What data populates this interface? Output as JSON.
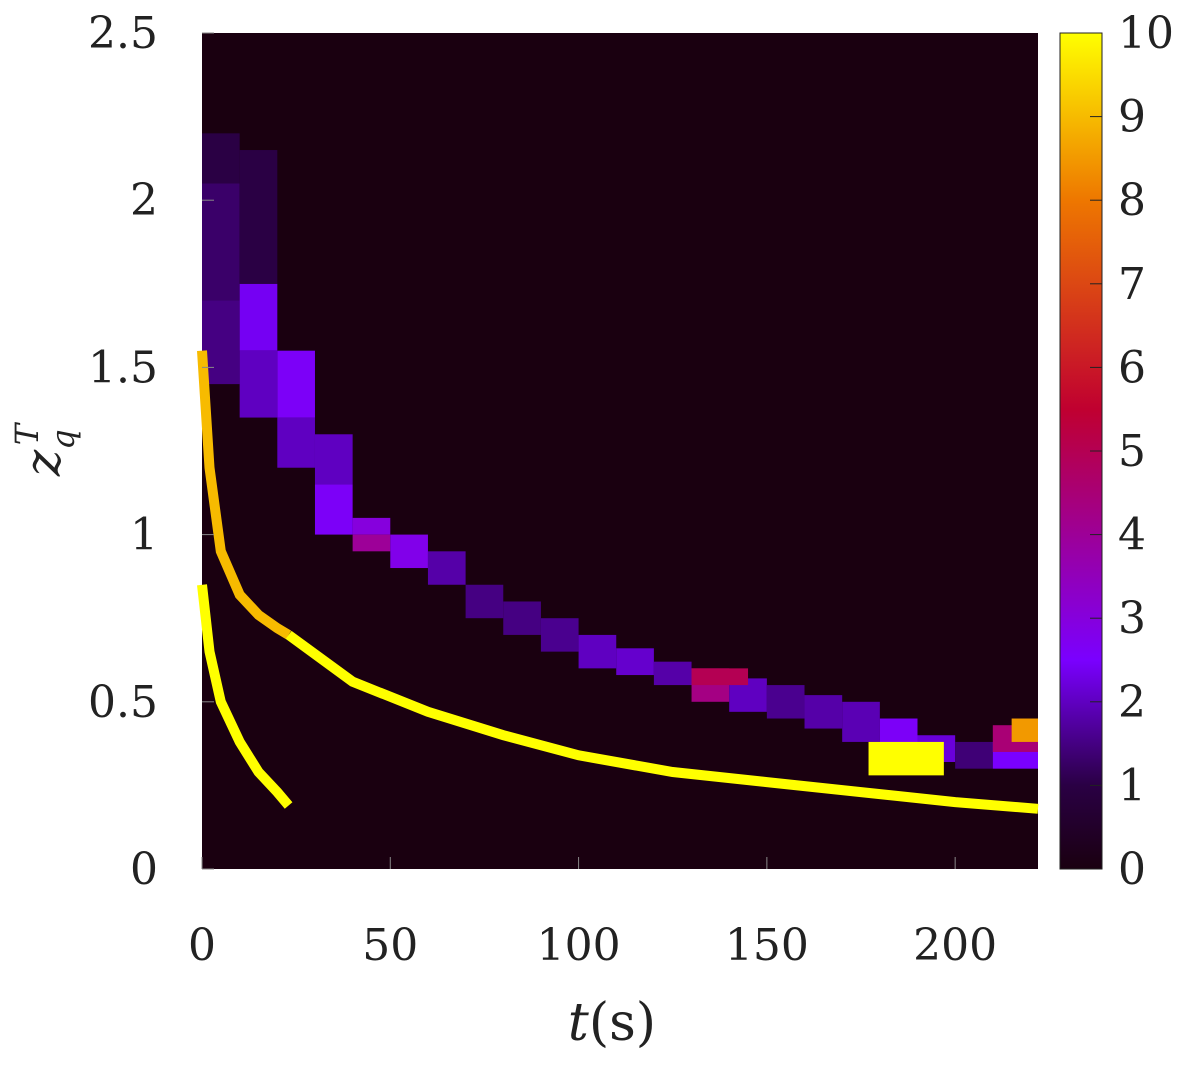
{
  "chart_data": {
    "type": "heatmap",
    "x_label": {
      "var": "t",
      "unit": "(s)"
    },
    "y_label": {
      "var": "z",
      "sub": "q",
      "sup": "T"
    },
    "xlim": [
      0,
      222
    ],
    "ylim": [
      0,
      2.5
    ],
    "x_ticks": [
      0,
      50,
      100,
      150,
      200
    ],
    "x_tick_labels": [
      "0",
      "50",
      "100",
      "150",
      "200"
    ],
    "y_ticks": [
      0,
      0.5,
      1,
      1.5,
      2,
      2.5
    ],
    "y_tick_labels": [
      "0",
      "0.5",
      "1",
      "1.5",
      "2",
      "2.5"
    ],
    "colorbar": {
      "range": [
        0,
        10
      ],
      "ticks": [
        0,
        1,
        2,
        3,
        4,
        5,
        6,
        7,
        8,
        9,
        10
      ],
      "tick_labels": [
        "0",
        "1",
        "2",
        "3",
        "4",
        "5",
        "6",
        "7",
        "8",
        "9",
        "10"
      ],
      "stops": [
        "#1a0010",
        "#2a0044",
        "#7a00ff",
        "#c00030",
        "#ee7700",
        "#ffff00"
      ]
    },
    "background_value": 0.1,
    "cells": [
      {
        "x0": 0,
        "x1": 10,
        "y0": 2.05,
        "y1": 2.2,
        "v": 1.0
      },
      {
        "x0": 0,
        "x1": 10,
        "y0": 1.7,
        "y1": 2.05,
        "v": 1.3
      },
      {
        "x0": 0,
        "x1": 10,
        "y0": 1.45,
        "y1": 1.7,
        "v": 1.5
      },
      {
        "x0": 10,
        "x1": 20,
        "y0": 1.55,
        "y1": 1.75,
        "v": 2.4
      },
      {
        "x0": 10,
        "x1": 20,
        "y0": 1.35,
        "y1": 1.55,
        "v": 2.0
      },
      {
        "x0": 10,
        "x1": 20,
        "y0": 1.75,
        "y1": 2.15,
        "v": 1.0
      },
      {
        "x0": 20,
        "x1": 30,
        "y0": 1.35,
        "y1": 1.55,
        "v": 2.6
      },
      {
        "x0": 20,
        "x1": 30,
        "y0": 1.2,
        "y1": 1.35,
        "v": 2.0
      },
      {
        "x0": 30,
        "x1": 40,
        "y0": 1.15,
        "y1": 1.3,
        "v": 2.0
      },
      {
        "x0": 30,
        "x1": 40,
        "y0": 1.0,
        "y1": 1.15,
        "v": 2.6
      },
      {
        "x0": 40,
        "x1": 50,
        "y0": 1.0,
        "y1": 1.05,
        "v": 3.0
      },
      {
        "x0": 40,
        "x1": 50,
        "y0": 0.95,
        "y1": 1.0,
        "v": 4.0
      },
      {
        "x0": 50,
        "x1": 60,
        "y0": 0.9,
        "y1": 1.0,
        "v": 2.8
      },
      {
        "x0": 60,
        "x1": 70,
        "y0": 0.85,
        "y1": 0.95,
        "v": 1.8
      },
      {
        "x0": 70,
        "x1": 80,
        "y0": 0.75,
        "y1": 0.85,
        "v": 1.5
      },
      {
        "x0": 80,
        "x1": 90,
        "y0": 0.7,
        "y1": 0.8,
        "v": 1.5
      },
      {
        "x0": 90,
        "x1": 100,
        "y0": 0.65,
        "y1": 0.75,
        "v": 1.6
      },
      {
        "x0": 100,
        "x1": 110,
        "y0": 0.6,
        "y1": 0.7,
        "v": 2.0
      },
      {
        "x0": 110,
        "x1": 120,
        "y0": 0.58,
        "y1": 0.66,
        "v": 2.1
      },
      {
        "x0": 120,
        "x1": 130,
        "y0": 0.55,
        "y1": 0.62,
        "v": 1.8
      },
      {
        "x0": 130,
        "x1": 140,
        "y0": 0.5,
        "y1": 0.6,
        "v": 4.3
      },
      {
        "x0": 140,
        "x1": 150,
        "y0": 0.47,
        "y1": 0.57,
        "v": 2.0
      },
      {
        "x0": 150,
        "x1": 160,
        "y0": 0.45,
        "y1": 0.55,
        "v": 1.6
      },
      {
        "x0": 160,
        "x1": 170,
        "y0": 0.42,
        "y1": 0.52,
        "v": 1.8
      },
      {
        "x0": 170,
        "x1": 180,
        "y0": 0.38,
        "y1": 0.5,
        "v": 1.9
      },
      {
        "x0": 180,
        "x1": 190,
        "y0": 0.35,
        "y1": 0.45,
        "v": 2.6
      },
      {
        "x0": 190,
        "x1": 200,
        "y0": 0.32,
        "y1": 0.4,
        "v": 2.2
      },
      {
        "x0": 200,
        "x1": 210,
        "y0": 0.3,
        "y1": 0.38,
        "v": 1.4
      },
      {
        "x0": 210,
        "x1": 222,
        "y0": 0.3,
        "y1": 0.38,
        "v": 2.5
      },
      {
        "x0": 177,
        "x1": 197,
        "y0": 0.28,
        "y1": 0.38,
        "v": 10.0
      },
      {
        "x0": 210,
        "x1": 222,
        "y0": 0.35,
        "y1": 0.43,
        "v": 4.5
      },
      {
        "x0": 215,
        "x1": 222,
        "y0": 0.38,
        "y1": 0.45,
        "v": 8.5
      },
      {
        "x0": 130,
        "x1": 145,
        "y0": 0.55,
        "y1": 0.6,
        "v": 5.0
      }
    ],
    "curves": [
      {
        "x": [
          0,
          2,
          5,
          10,
          15,
          20,
          23
        ],
        "y": [
          1.55,
          1.2,
          0.95,
          0.82,
          0.76,
          0.72,
          0.7
        ],
        "v": 9.0
      },
      {
        "x": [
          0,
          2,
          5,
          10,
          15,
          20,
          23
        ],
        "y": [
          0.85,
          0.65,
          0.5,
          0.38,
          0.29,
          0.23,
          0.19
        ],
        "v": 10.0
      },
      {
        "x": [
          23,
          40,
          60,
          80,
          100,
          125,
          150,
          175,
          200,
          222
        ],
        "y": [
          0.7,
          0.56,
          0.47,
          0.4,
          0.34,
          0.29,
          0.26,
          0.23,
          0.2,
          0.18
        ],
        "v": 10.0
      }
    ]
  }
}
